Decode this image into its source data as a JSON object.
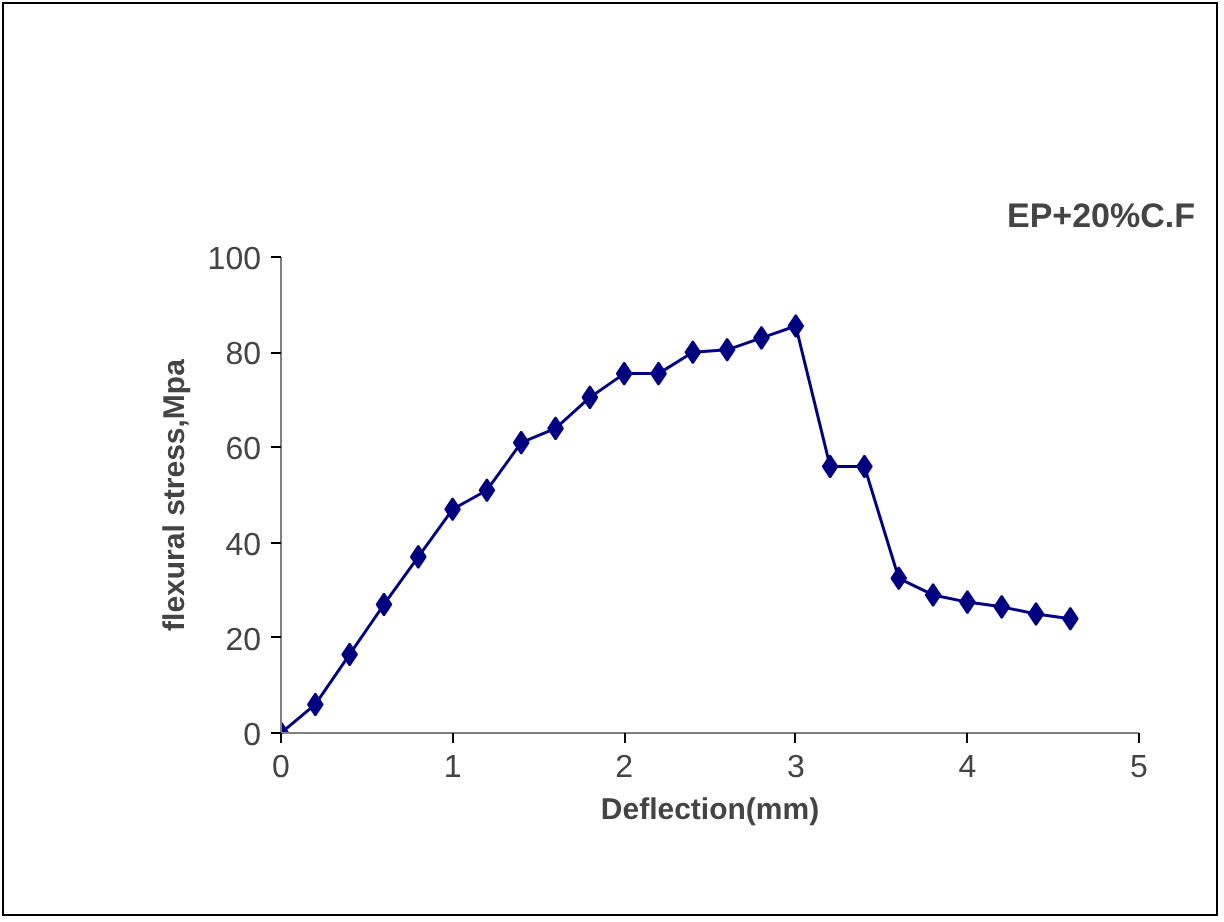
{
  "chart_data": {
    "type": "line",
    "title": "EP+20%C.F",
    "xlabel": "Deflection(mm)",
    "ylabel": "flexural stress,Mpa",
    "x": [
      0,
      0.2,
      0.4,
      0.6,
      0.8,
      1.0,
      1.2,
      1.4,
      1.6,
      1.8,
      2.0,
      2.2,
      2.4,
      2.6,
      2.8,
      3.0,
      3.2,
      3.4,
      3.6,
      3.8,
      4.0,
      4.2,
      4.4,
      4.6
    ],
    "series": [
      {
        "color": "#000080",
        "values": [
          0,
          6,
          16.5,
          27,
          37,
          47,
          51,
          61,
          64,
          70.5,
          75.5,
          75.5,
          80,
          80.5,
          83,
          85.5,
          56,
          56,
          32.5,
          29,
          27.5,
          26.5,
          25,
          24
        ]
      }
    ],
    "xlim": [
      0,
      5
    ],
    "ylim": [
      0,
      100
    ],
    "xticks": [
      0,
      1,
      2,
      3,
      4,
      5
    ],
    "yticks": [
      0,
      20,
      40,
      60,
      80,
      100
    ],
    "grid": false,
    "marker": "diamond",
    "line_style": "solid"
  }
}
